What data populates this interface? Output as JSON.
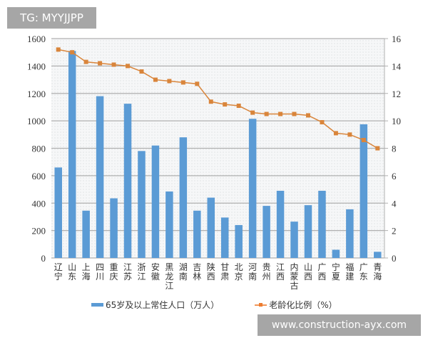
{
  "watermarks": {
    "top": "TG: MYYJJPP",
    "bottom": "www.construction-ayx.com"
  },
  "colors": {
    "bar": "#5b9bd5",
    "line": "#d9853b",
    "grid": "#b0b0b0"
  },
  "chart_data": {
    "type": "bar+line",
    "title": "",
    "categories": [
      "辽宁",
      "山东",
      "上海",
      "四川",
      "重庆",
      "江苏",
      "浙江",
      "安徽",
      "黑龙江",
      "湖南",
      "吉林",
      "陕西",
      "甘肃",
      "北京",
      "河南",
      "贵州",
      "江西",
      "内蒙古",
      "山西",
      "广西",
      "宁夏",
      "福建",
      "广东",
      "青海"
    ],
    "series": [
      {
        "name": "65岁及以上常住人口（万人）",
        "type": "bar",
        "axis": "left",
        "values": [
          660,
          1510,
          345,
          1180,
          435,
          1125,
          780,
          820,
          485,
          880,
          345,
          440,
          295,
          240,
          1015,
          380,
          490,
          265,
          385,
          490,
          60,
          355,
          975,
          45
        ]
      },
      {
        "name": "老龄化比例（%）",
        "type": "line",
        "axis": "right",
        "values": [
          15.2,
          15.0,
          14.3,
          14.2,
          14.1,
          14.0,
          13.6,
          13.0,
          12.9,
          12.8,
          12.7,
          11.4,
          11.2,
          11.1,
          10.6,
          10.5,
          10.5,
          10.5,
          10.4,
          9.9,
          9.1,
          9.0,
          8.6,
          8.0
        ]
      }
    ],
    "y_left": {
      "ylim": [
        0,
        1600
      ],
      "ticks": [
        "0",
        "200",
        "400",
        "600",
        "800",
        "1000",
        "1200",
        "1400",
        "1600"
      ]
    },
    "y_right": {
      "ylim": [
        0,
        16
      ],
      "ticks": [
        "0",
        "2",
        "4",
        "6",
        "8",
        "10",
        "12",
        "14",
        "16"
      ]
    },
    "grid": true,
    "legend_position": "bottom"
  },
  "legend": {
    "bar_label": "65岁及以上常住人口（万人）",
    "line_label": "老龄化比例（%）"
  }
}
